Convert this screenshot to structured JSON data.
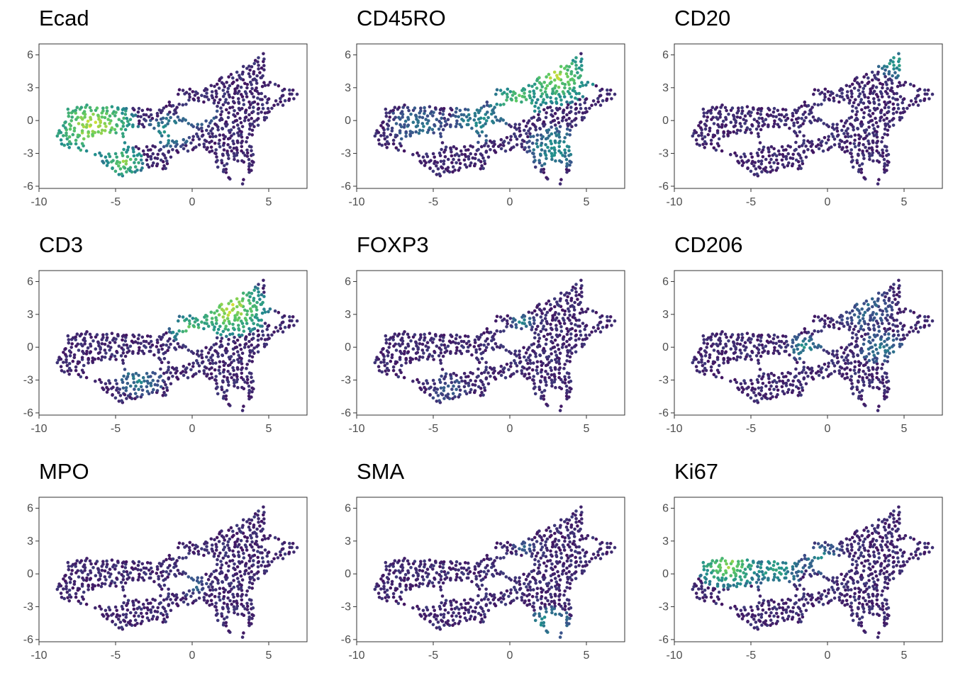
{
  "figure": {
    "colormap": "viridis",
    "colors": [
      "#440154",
      "#3b528b",
      "#21908d",
      "#5dc963",
      "#fde725"
    ],
    "background": "#ffffff",
    "panel_border": "#333333"
  },
  "chart_data": [
    {
      "type": "scatter",
      "title": "Ecad",
      "xlim": [
        -10,
        7.5
      ],
      "ylim": [
        -6.2,
        7
      ],
      "xticks": [
        -10,
        -5,
        0,
        5
      ],
      "yticks": [
        -6,
        -3,
        0,
        3,
        6
      ],
      "grid": false,
      "hotspots": [
        {
          "x": -6.5,
          "y": -0.5,
          "r": 3.0,
          "v": 0.95
        },
        {
          "x": -4.5,
          "y": -3.8,
          "r": 1.5,
          "v": 0.85
        },
        {
          "x": -1.5,
          "y": -1.0,
          "r": 1.6,
          "v": 0.55
        },
        {
          "x": 0.5,
          "y": 0.5,
          "r": 1.2,
          "v": 0.45
        }
      ]
    },
    {
      "type": "scatter",
      "title": "CD45RO",
      "xlim": [
        -10,
        7.5
      ],
      "ylim": [
        -6.2,
        7
      ],
      "xticks": [
        -10,
        -5,
        0,
        5
      ],
      "yticks": [
        -6,
        -3,
        0,
        3,
        6
      ],
      "grid": false,
      "hotspots": [
        {
          "x": 3.0,
          "y": 4.0,
          "r": 2.6,
          "v": 0.9
        },
        {
          "x": 0.5,
          "y": 2.0,
          "r": 2.0,
          "v": 0.75
        },
        {
          "x": 3.0,
          "y": -2.5,
          "r": 2.0,
          "v": 0.55
        },
        {
          "x": -2.0,
          "y": 0.0,
          "r": 2.0,
          "v": 0.5
        },
        {
          "x": -6.0,
          "y": -0.5,
          "r": 2.0,
          "v": 0.4
        }
      ]
    },
    {
      "type": "scatter",
      "title": "CD20",
      "xlim": [
        -10,
        7.5
      ],
      "ylim": [
        -6.2,
        7
      ],
      "xticks": [
        -10,
        -5,
        0,
        5
      ],
      "yticks": [
        -6,
        -3,
        0,
        3,
        6
      ],
      "grid": false,
      "hotspots": [
        {
          "x": 4.6,
          "y": 5.2,
          "r": 1.4,
          "v": 0.6
        }
      ]
    },
    {
      "type": "scatter",
      "title": "CD3",
      "xlim": [
        -10,
        7.5
      ],
      "ylim": [
        -6.2,
        7
      ],
      "xticks": [
        -10,
        -5,
        0,
        5
      ],
      "yticks": [
        -6,
        -3,
        0,
        3,
        6
      ],
      "grid": false,
      "hotspots": [
        {
          "x": 2.5,
          "y": 3.5,
          "r": 2.6,
          "v": 0.95
        },
        {
          "x": 0.0,
          "y": 1.8,
          "r": 1.6,
          "v": 0.75
        },
        {
          "x": -3.5,
          "y": -3.0,
          "r": 1.6,
          "v": 0.45
        }
      ]
    },
    {
      "type": "scatter",
      "title": "FOXP3",
      "xlim": [
        -10,
        7.5
      ],
      "ylim": [
        -6.2,
        7
      ],
      "xticks": [
        -10,
        -5,
        0,
        5
      ],
      "yticks": [
        -6,
        -3,
        0,
        3,
        6
      ],
      "grid": false,
      "hotspots": [
        {
          "x": 0.8,
          "y": 2.3,
          "r": 0.9,
          "v": 0.45
        },
        {
          "x": -4.0,
          "y": -3.8,
          "r": 1.5,
          "v": 0.3
        }
      ]
    },
    {
      "type": "scatter",
      "title": "CD206",
      "xlim": [
        -10,
        7.5
      ],
      "ylim": [
        -6.2,
        7
      ],
      "xticks": [
        -10,
        -5,
        0,
        5
      ],
      "yticks": [
        -6,
        -3,
        0,
        3,
        6
      ],
      "grid": false,
      "hotspots": [
        {
          "x": -1.5,
          "y": 0.0,
          "r": 1.2,
          "v": 0.5
        },
        {
          "x": 3.5,
          "y": 0.0,
          "r": 1.5,
          "v": 0.45
        },
        {
          "x": 2.5,
          "y": 3.5,
          "r": 2.0,
          "v": 0.35
        }
      ]
    },
    {
      "type": "scatter",
      "title": "MPO",
      "xlim": [
        -10,
        7.5
      ],
      "ylim": [
        -6.2,
        7
      ],
      "xticks": [
        -10,
        -5,
        0,
        5
      ],
      "yticks": [
        -6,
        -3,
        0,
        3,
        6
      ],
      "grid": false,
      "hotspots": [
        {
          "x": 0.0,
          "y": -1.0,
          "r": 1.0,
          "v": 0.35
        }
      ]
    },
    {
      "type": "scatter",
      "title": "SMA",
      "xlim": [
        -10,
        7.5
      ],
      "ylim": [
        -6.2,
        7
      ],
      "xticks": [
        -10,
        -5,
        0,
        5
      ],
      "yticks": [
        -6,
        -3,
        0,
        3,
        6
      ],
      "grid": false,
      "hotspots": [
        {
          "x": 2.6,
          "y": -4.5,
          "r": 1.5,
          "v": 0.55
        },
        {
          "x": 1.0,
          "y": 2.5,
          "r": 1.0,
          "v": 0.3
        }
      ]
    },
    {
      "type": "scatter",
      "title": "Ki67",
      "xlim": [
        -10,
        7.5
      ],
      "ylim": [
        -6.2,
        7
      ],
      "xticks": [
        -10,
        -5,
        0,
        5
      ],
      "yticks": [
        -6,
        -3,
        0,
        3,
        6
      ],
      "grid": false,
      "hotspots": [
        {
          "x": -6.5,
          "y": 0.8,
          "r": 2.2,
          "v": 0.85
        },
        {
          "x": -3.5,
          "y": 0.5,
          "r": 2.0,
          "v": 0.6
        },
        {
          "x": -0.5,
          "y": 1.5,
          "r": 1.5,
          "v": 0.45
        }
      ]
    }
  ]
}
